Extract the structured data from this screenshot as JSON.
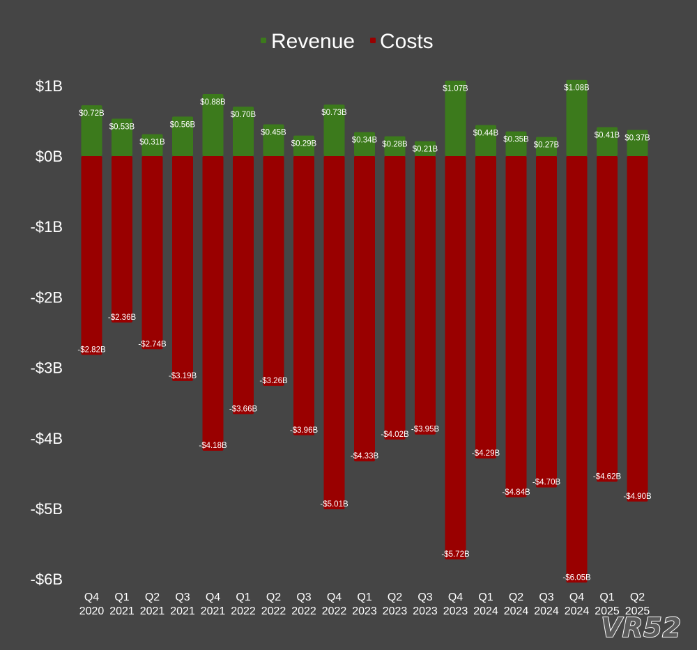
{
  "chart_data": {
    "type": "bar",
    "stacked": "diverging",
    "title": "",
    "xlabel": "",
    "ylabel": "",
    "ylim": [
      -6,
      1
    ],
    "y_unit": "billions USD",
    "y_ticks": [
      {
        "value": 1,
        "label": "$1B"
      },
      {
        "value": 0,
        "label": "$0B"
      },
      {
        "value": -1,
        "label": "-$1B"
      },
      {
        "value": -2,
        "label": "-$2B"
      },
      {
        "value": -3,
        "label": "-$3B"
      },
      {
        "value": -4,
        "label": "-$4B"
      },
      {
        "value": -5,
        "label": "-$5B"
      },
      {
        "value": -6,
        "label": "-$6B"
      }
    ],
    "grid": false,
    "legend_position": "top-center",
    "categories": [
      [
        "Q4",
        "2020"
      ],
      [
        "Q1",
        "2021"
      ],
      [
        "Q2",
        "2021"
      ],
      [
        "Q3",
        "2021"
      ],
      [
        "Q4",
        "2021"
      ],
      [
        "Q1",
        "2022"
      ],
      [
        "Q2",
        "2022"
      ],
      [
        "Q3",
        "2022"
      ],
      [
        "Q4",
        "2022"
      ],
      [
        "Q1",
        "2023"
      ],
      [
        "Q2",
        "2023"
      ],
      [
        "Q3",
        "2023"
      ],
      [
        "Q4",
        "2023"
      ],
      [
        "Q1",
        "2024"
      ],
      [
        "Q2",
        "2024"
      ],
      [
        "Q3",
        "2024"
      ],
      [
        "Q4",
        "2024"
      ],
      [
        "Q1",
        "2025"
      ],
      [
        "Q2",
        "2025"
      ]
    ],
    "series": [
      {
        "name": "Revenue",
        "color": "#3c7a1c",
        "values": [
          0.72,
          0.53,
          0.31,
          0.56,
          0.88,
          0.7,
          0.45,
          0.29,
          0.73,
          0.34,
          0.28,
          0.21,
          1.07,
          0.44,
          0.35,
          0.27,
          1.08,
          0.41,
          0.37
        ],
        "labels": [
          "$0.72B",
          "$0.53B",
          "$0.31B",
          "$0.56B",
          "$0.88B",
          "$0.70B",
          "$0.45B",
          "$0.29B",
          "$0.73B",
          "$0.34B",
          "$0.28B",
          "$0.21B",
          "$1.07B",
          "$0.44B",
          "$0.35B",
          "$0.27B",
          "$1.08B",
          "$0.41B",
          "$0.37B"
        ]
      },
      {
        "name": "Costs",
        "color": "#990000",
        "values": [
          -2.82,
          -2.36,
          -2.74,
          -3.19,
          -4.18,
          -3.66,
          -3.26,
          -3.96,
          -5.01,
          -4.33,
          -4.02,
          -3.95,
          -5.72,
          -4.29,
          -4.84,
          -4.7,
          -6.05,
          -4.62,
          -4.9
        ],
        "labels": [
          "-$2.82B",
          "-$2.36B",
          "-$2.74B",
          "-$3.19B",
          "-$4.18B",
          "-$3.66B",
          "-$3.26B",
          "-$3.96B",
          "-$5.01B",
          "-$4.33B",
          "-$4.02B",
          "-$3.95B",
          "-$5.72B",
          "-$4.29B",
          "-$4.84B",
          "-$4.70B",
          "-$6.05B",
          "-$4.62B",
          "-$4.90B"
        ]
      }
    ]
  },
  "watermark": "VR52",
  "colors": {
    "background": "#454545",
    "text": "#ffffff"
  }
}
